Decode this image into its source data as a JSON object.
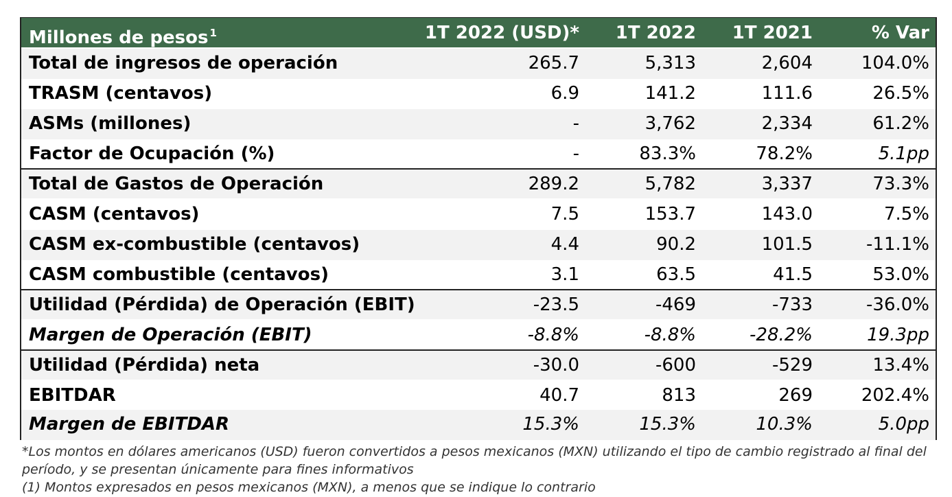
{
  "header": {
    "label": "Millones de pesos",
    "label_sup": "1",
    "cols": [
      "1T 2022 (USD)*",
      "1T 2022",
      "1T 2021",
      "% Var"
    ]
  },
  "rows": [
    {
      "label": "Total de ingresos de operación",
      "v": [
        "265.7",
        "5,313",
        "2,604",
        "104.0%"
      ]
    },
    {
      "label": "TRASM (centavos)",
      "v": [
        "6.9",
        "141.2",
        "111.6",
        "26.5%"
      ]
    },
    {
      "label": "ASMs (millones)",
      "v": [
        "-",
        "3,762",
        "2,334",
        "61.2%"
      ]
    },
    {
      "label": "Factor de Ocupación (%)",
      "v": [
        "-",
        "83.3%",
        "78.2%",
        "5.1pp"
      ]
    },
    {
      "label": "Total de Gastos de Operación",
      "v": [
        "289.2",
        "5,782",
        "3,337",
        "73.3%"
      ]
    },
    {
      "label": "CASM (centavos)",
      "v": [
        "7.5",
        "153.7",
        "143.0",
        "7.5%"
      ]
    },
    {
      "label": "CASM ex-combustible (centavos)",
      "v": [
        "4.4",
        "90.2",
        "101.5",
        "-11.1%"
      ]
    },
    {
      "label": "CASM combustible (centavos)",
      "v": [
        "3.1",
        "63.5",
        "41.5",
        "53.0%"
      ]
    },
    {
      "label": "Utilidad (Pérdida) de Operación (EBIT)",
      "v": [
        "-23.5",
        "-469",
        "-733",
        "-36.0%"
      ]
    },
    {
      "label": "Margen de Operación (EBIT)",
      "v": [
        "-8.8%",
        "-8.8%",
        "-28.2%",
        "19.3pp"
      ]
    },
    {
      "label": "Utilidad (Pérdida) neta",
      "v": [
        "-30.0",
        "-600",
        "-529",
        "13.4%"
      ]
    },
    {
      "label": "EBITDAR",
      "v": [
        "40.7",
        "813",
        "269",
        "202.4%"
      ]
    },
    {
      "label": "Margen de EBITDAR",
      "v": [
        "15.3%",
        "15.3%",
        "10.3%",
        "5.0pp"
      ]
    }
  ],
  "notes": [
    "*Los montos en dólares americanos (USD) fueron convertidos a pesos mexicanos (MXN) utilizando el tipo de cambio registrado al final del período, y se presentan únicamente para fines informativos",
    "(1) Montos expresados en pesos mexicanos (MXN), a menos que se indique lo contrario"
  ],
  "colors": {
    "header_bg": "#3e6b4a",
    "header_text": "#ffffff",
    "row_shade": "#f2f2f2"
  }
}
